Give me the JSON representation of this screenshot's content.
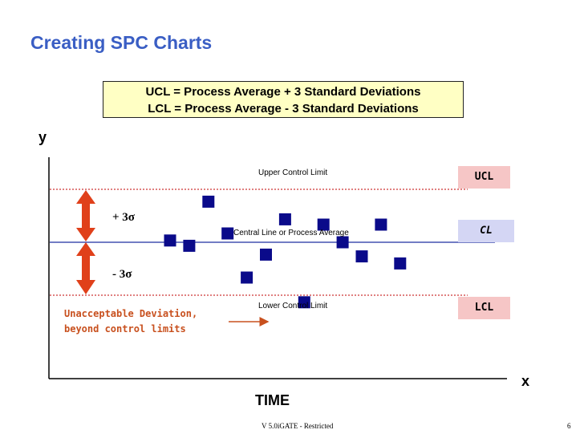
{
  "slide": {
    "title": "Creating SPC Charts",
    "formula_line1": "UCL = Process Average + 3 Standard Deviations",
    "formula_line2": "LCL = Process Average - 3 Standard Deviations",
    "y_axis": "y",
    "x_axis": "x",
    "time_label": "TIME",
    "ucl_text": "Upper Control Limit",
    "cl_text": "Central Line or Process Average",
    "lcl_text": "Lower Control Limit",
    "ucl_tag": "UCL",
    "cl_tag": "CL",
    "lcl_tag": "LCL",
    "plus_sigma": "+ 3σ",
    "minus_sigma": "- 3σ",
    "warning_line1": "Unacceptable Deviation,",
    "warning_line2": "beyond control limits",
    "footer": "V 5.0iGATE - Restricted",
    "page_number": "6"
  },
  "colors": {
    "title": "#3a5ec4",
    "formula_box": "#ffffc4",
    "limit_line": "#c00000",
    "center_line": "#1f2fa0",
    "point": "#0a0a8a",
    "arrow": "#e0401a",
    "warning_text": "#c8501e",
    "ucl_tag": "#f6c6c6",
    "cl_tag": "#d4d6f4",
    "lcl_tag": "#f6c6c6"
  },
  "chart_data": {
    "type": "scatter",
    "title": "",
    "xlabel": "TIME",
    "ylabel": "y",
    "ucl": 3,
    "cl": 0,
    "lcl": -3,
    "x": [
      1,
      2,
      3,
      4,
      5,
      6,
      7,
      8,
      9,
      10,
      11,
      12,
      13
    ],
    "values": [
      0.1,
      -0.2,
      2.3,
      0.5,
      -2.0,
      -0.7,
      1.3,
      -3.4,
      1.0,
      0.0,
      -0.8,
      1.0,
      -1.2
    ]
  }
}
